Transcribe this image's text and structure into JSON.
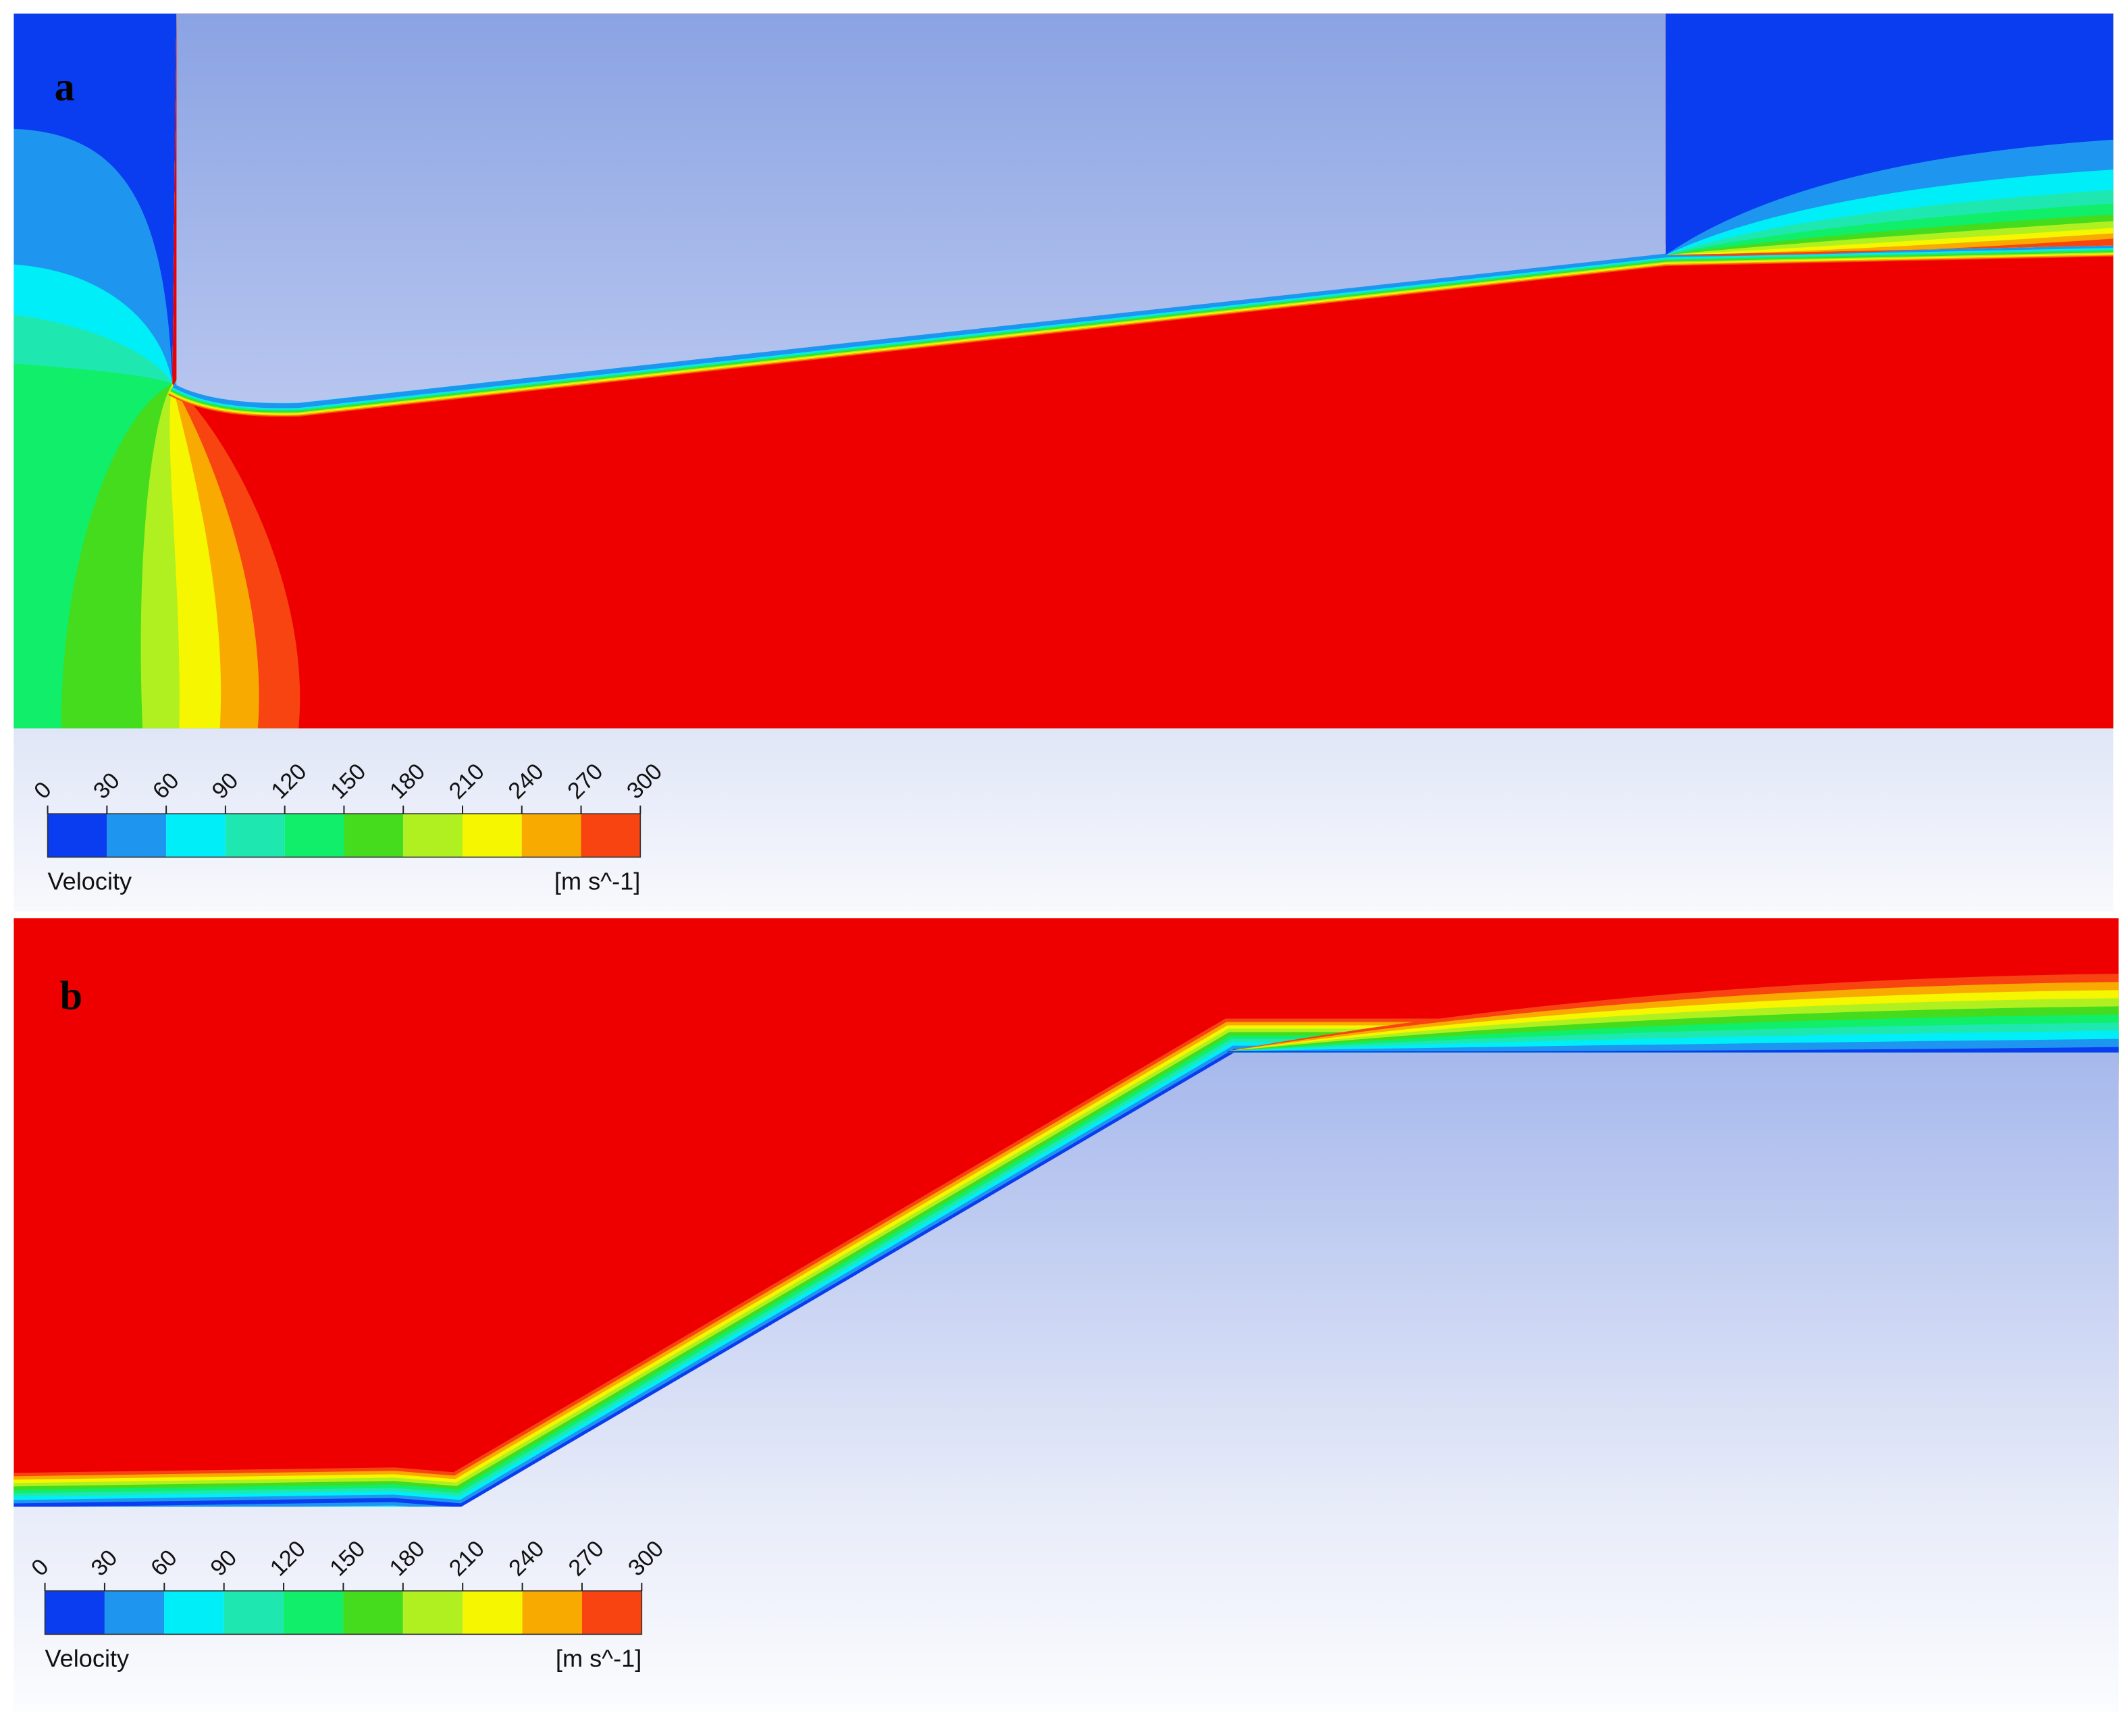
{
  "panels": [
    {
      "label": "a",
      "legend": {
        "title": "Velocity",
        "unit": "[m s^-1]",
        "ticks": [
          0,
          30,
          60,
          90,
          120,
          150,
          180,
          210,
          240,
          270,
          300
        ],
        "colors": [
          "#0a3cf0",
          "#1e96f0",
          "#00eef8",
          "#1ee8b0",
          "#10ee6a",
          "#44dc1c",
          "#b0f020",
          "#f6f600",
          "#f8aa00",
          "#f84410"
        ]
      }
    },
    {
      "label": "b",
      "legend": {
        "title": "Velocity",
        "unit": "[m s^-1]",
        "ticks": [
          0,
          30,
          60,
          90,
          120,
          150,
          180,
          210,
          240,
          270,
          300
        ],
        "colors": [
          "#0a3cf0",
          "#1e96f0",
          "#00eef8",
          "#1ee8b0",
          "#10ee6a",
          "#44dc1c",
          "#b0f020",
          "#f6f600",
          "#f8aa00",
          "#f84410"
        ]
      }
    }
  ]
}
